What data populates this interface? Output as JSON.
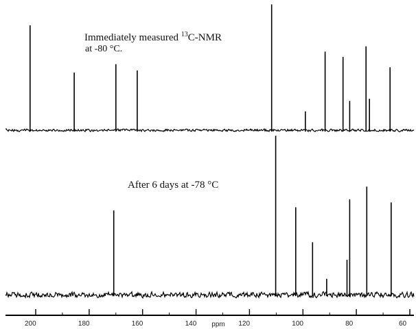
{
  "chart_data": {
    "type": "line",
    "title": "",
    "xlabel": "ppm",
    "ylabel": "",
    "x_reversed": true,
    "xlim": [
      210,
      58
    ],
    "x_ticks": [
      200,
      180,
      160,
      140,
      120,
      100,
      80,
      60
    ],
    "x_tick_labels": [
      "200",
      "180",
      "160",
      "140",
      "120",
      "100",
      "80",
      "60"
    ],
    "annotations": [
      {
        "id": "top",
        "text_main": "Immediately measured ",
        "text_sup": "13",
        "text_tail": "C-NMR",
        "line2": "at -80 °C."
      },
      {
        "id": "bottom",
        "text": "After 6 days at -78 °C"
      }
    ],
    "series": [
      {
        "peaks": [
          {
            "ppm": 202.1,
            "height": 1.0
          },
          {
            "ppm": 185.6,
            "height": 0.55
          },
          {
            "ppm": 170.0,
            "height": 0.63
          },
          {
            "ppm": 162.0,
            "height": 0.57
          },
          {
            "ppm": 111.7,
            "height": 1.2
          },
          {
            "ppm": 99.1,
            "height": 0.18
          },
          {
            "ppm": 91.7,
            "height": 0.75
          },
          {
            "ppm": 85.0,
            "height": 0.7
          },
          {
            "ppm": 82.5,
            "height": 0.28
          },
          {
            "ppm": 76.4,
            "height": 0.8
          },
          {
            "ppm": 75.1,
            "height": 0.3
          },
          {
            "ppm": 67.4,
            "height": 0.6
          }
        ]
      },
      {
        "peaks": [
          {
            "ppm": 170.8,
            "height": 0.53
          },
          {
            "ppm": 110.2,
            "height": 1.0
          },
          {
            "ppm": 102.7,
            "height": 0.55
          },
          {
            "ppm": 96.4,
            "height": 0.33
          },
          {
            "ppm": 91.1,
            "height": 0.1
          },
          {
            "ppm": 83.5,
            "height": 0.22
          },
          {
            "ppm": 82.5,
            "height": 0.6
          },
          {
            "ppm": 76.1,
            "height": 0.68
          },
          {
            "ppm": 67.0,
            "height": 0.58
          }
        ]
      }
    ]
  }
}
